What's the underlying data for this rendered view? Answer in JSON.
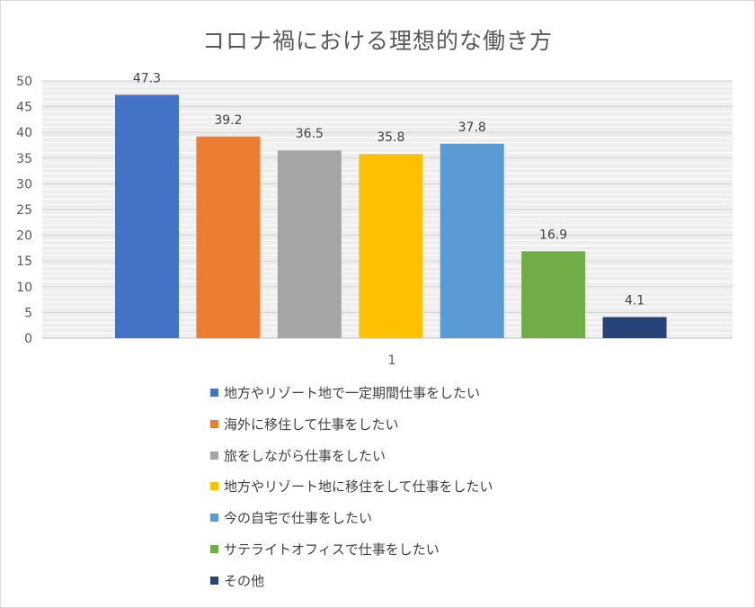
{
  "chart_data": {
    "type": "bar",
    "title": "コロナ禍における理想的な働き方",
    "categories": [
      "1"
    ],
    "xlabel": "",
    "ylabel": "",
    "ylim": [
      0,
      50
    ],
    "ytick_step": 5,
    "grid": true,
    "legend_position": "bottom",
    "series": [
      {
        "name": "地方やリゾート地で一定期間仕事をしたい",
        "values": [
          47.3
        ],
        "label": "47.3",
        "color": "#4472c4"
      },
      {
        "name": "海外に移住して仕事をしたい",
        "values": [
          39.2
        ],
        "label": "39.2",
        "color": "#ed7d31"
      },
      {
        "name": "旅をしながら仕事をしたい",
        "values": [
          36.5
        ],
        "label": "36.5",
        "color": "#a5a5a5"
      },
      {
        "name": "地方やリゾート地に移住をして仕事をしたい",
        "values": [
          35.8
        ],
        "label": "35.8",
        "color": "#ffc000"
      },
      {
        "name": "今の自宅で仕事をしたい",
        "values": [
          37.8
        ],
        "label": "37.8",
        "color": "#5b9bd5"
      },
      {
        "name": "サテライトオフィスで仕事をしたい",
        "values": [
          16.9
        ],
        "label": "16.9",
        "color": "#70ad47"
      },
      {
        "name": "その他",
        "values": [
          4.1
        ],
        "label": "4.1",
        "color": "#264478"
      }
    ]
  }
}
